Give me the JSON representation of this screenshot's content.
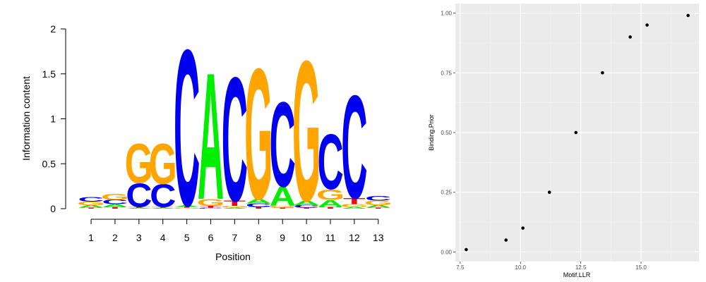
{
  "chart_data": [
    {
      "type": "sequence-logo",
      "xlabel": "Position",
      "ylabel": "Information content",
      "ylim": [
        0,
        2
      ],
      "yticks": [
        "0",
        "0.5",
        "1",
        "1.5",
        "2"
      ],
      "positions": [
        "1",
        "2",
        "3",
        "4",
        "5",
        "6",
        "7",
        "8",
        "9",
        "10",
        "11",
        "12",
        "13"
      ],
      "letter_colors": {
        "A": "#00ee00",
        "C": "#0000ee",
        "G": "#ffa500",
        "T": "#ff0000"
      },
      "columns": [
        {
          "position": "1",
          "stack": [
            {
              "letter": "T",
              "height": 0.01
            },
            {
              "letter": "A",
              "height": 0.03
            },
            {
              "letter": "G",
              "height": 0.04
            },
            {
              "letter": "C",
              "height": 0.05
            }
          ]
        },
        {
          "position": "2",
          "stack": [
            {
              "letter": "T",
              "height": 0.02
            },
            {
              "letter": "A",
              "height": 0.03
            },
            {
              "letter": "C",
              "height": 0.05
            },
            {
              "letter": "G",
              "height": 0.07
            }
          ]
        },
        {
          "position": "3",
          "stack": [
            {
              "letter": "A",
              "height": 0.01
            },
            {
              "letter": "T",
              "height": 0.01
            },
            {
              "letter": "C",
              "height": 0.27
            },
            {
              "letter": "G",
              "height": 0.45
            }
          ]
        },
        {
          "position": "4",
          "stack": [
            {
              "letter": "A",
              "height": 0.01
            },
            {
              "letter": "T",
              "height": 0.01
            },
            {
              "letter": "C",
              "height": 0.26
            },
            {
              "letter": "G",
              "height": 0.46
            }
          ]
        },
        {
          "position": "5",
          "stack": [
            {
              "letter": "G",
              "height": 0.01
            },
            {
              "letter": "T",
              "height": 0.01
            },
            {
              "letter": "A",
              "height": 0.02
            },
            {
              "letter": "C",
              "height": 1.79
            }
          ]
        },
        {
          "position": "6",
          "stack": [
            {
              "letter": "C",
              "height": 0.01
            },
            {
              "letter": "T",
              "height": 0.02
            },
            {
              "letter": "G",
              "height": 0.08
            },
            {
              "letter": "A",
              "height": 1.45
            }
          ]
        },
        {
          "position": "7",
          "stack": [
            {
              "letter": "A",
              "height": 0.01
            },
            {
              "letter": "G",
              "height": 0.02
            },
            {
              "letter": "T",
              "height": 0.06
            },
            {
              "letter": "C",
              "height": 1.42
            }
          ]
        },
        {
          "position": "8",
          "stack": [
            {
              "letter": "T",
              "height": 0.02
            },
            {
              "letter": "C",
              "height": 0.04
            },
            {
              "letter": "A",
              "height": 0.05
            },
            {
              "letter": "G",
              "height": 1.5
            }
          ]
        },
        {
          "position": "9",
          "stack": [
            {
              "letter": "T",
              "height": 0.01
            },
            {
              "letter": "G",
              "height": 0.02
            },
            {
              "letter": "A",
              "height": 0.22
            },
            {
              "letter": "C",
              "height": 0.97
            }
          ]
        },
        {
          "position": "10",
          "stack": [
            {
              "letter": "T",
              "height": 0.01
            },
            {
              "letter": "C",
              "height": 0.03
            },
            {
              "letter": "A",
              "height": 0.05
            },
            {
              "letter": "G",
              "height": 1.61
            }
          ]
        },
        {
          "position": "11",
          "stack": [
            {
              "letter": "T",
              "height": 0.02
            },
            {
              "letter": "A",
              "height": 0.08
            },
            {
              "letter": "G",
              "height": 0.12
            },
            {
              "letter": "C",
              "height": 0.63
            }
          ]
        },
        {
          "position": "12",
          "stack": [
            {
              "letter": "A",
              "height": 0.02
            },
            {
              "letter": "G",
              "height": 0.03
            },
            {
              "letter": "T",
              "height": 0.07
            },
            {
              "letter": "C",
              "height": 1.18
            }
          ]
        },
        {
          "position": "13",
          "stack": [
            {
              "letter": "T",
              "height": 0.01
            },
            {
              "letter": "A",
              "height": 0.03
            },
            {
              "letter": "G",
              "height": 0.05
            },
            {
              "letter": "C",
              "height": 0.05
            }
          ]
        }
      ]
    },
    {
      "type": "scatter",
      "xlabel": "Motif.LLR",
      "ylabel": "Binding.Prior",
      "xlim": [
        7.3,
        17.4
      ],
      "ylim": [
        -0.04,
        1.04
      ],
      "xticks": [
        "7.5",
        "10.0",
        "12.5",
        "15.0"
      ],
      "xtick_values": [
        7.5,
        10.0,
        12.5,
        15.0
      ],
      "yticks": [
        "0.00",
        "0.25",
        "0.50",
        "0.75",
        "1.00"
      ],
      "ytick_values": [
        0.0,
        0.25,
        0.5,
        0.75,
        1.0
      ],
      "grid": true,
      "panel_color": "#ebebeb",
      "points": [
        {
          "x": 7.75,
          "y": 0.01
        },
        {
          "x": 9.4,
          "y": 0.05
        },
        {
          "x": 10.1,
          "y": 0.1
        },
        {
          "x": 11.2,
          "y": 0.25
        },
        {
          "x": 12.3,
          "y": 0.5
        },
        {
          "x": 13.4,
          "y": 0.75
        },
        {
          "x": 14.55,
          "y": 0.9
        },
        {
          "x": 15.25,
          "y": 0.95
        },
        {
          "x": 16.95,
          "y": 0.99
        }
      ]
    }
  ]
}
